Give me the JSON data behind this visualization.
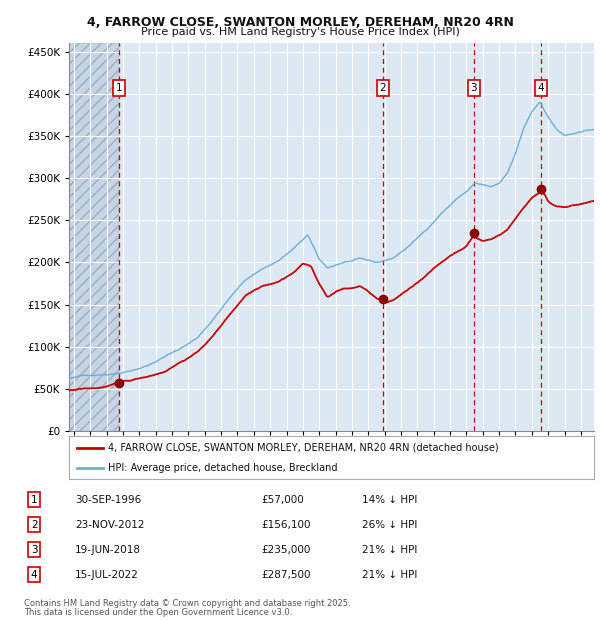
{
  "title1": "4, FARROW CLOSE, SWANTON MORLEY, DEREHAM, NR20 4RN",
  "title2": "Price paid vs. HM Land Registry's House Price Index (HPI)",
  "legend_line1": "4, FARROW CLOSE, SWANTON MORLEY, DEREHAM, NR20 4RN (detached house)",
  "legend_line2": "HPI: Average price, detached house, Breckland",
  "footer1": "Contains HM Land Registry data © Crown copyright and database right 2025.",
  "footer2": "This data is licensed under the Open Government Licence v3.0.",
  "sales": [
    {
      "num": 1,
      "date_str": "30-SEP-1996",
      "date_x": 1996.75,
      "price": 57000,
      "pct": "14%"
    },
    {
      "num": 2,
      "date_str": "23-NOV-2012",
      "date_x": 2012.9,
      "price": 156100,
      "pct": "26%"
    },
    {
      "num": 3,
      "date_str": "19-JUN-2018",
      "date_x": 2018.46,
      "price": 235000,
      "pct": "21%"
    },
    {
      "num": 4,
      "date_str": "15-JUL-2022",
      "date_x": 2022.54,
      "price": 287500,
      "pct": "21%"
    }
  ],
  "ylim": [
    0,
    460000
  ],
  "xlim_start": 1993.7,
  "xlim_end": 2025.8,
  "hpi_color": "#6baed6",
  "sale_color": "#cc0000",
  "bg_color": "#dce9f5",
  "grid_color": "#ffffff",
  "vline_color": "#cc0000",
  "box_color": "#cc0000",
  "marker_color": "#8b0000"
}
